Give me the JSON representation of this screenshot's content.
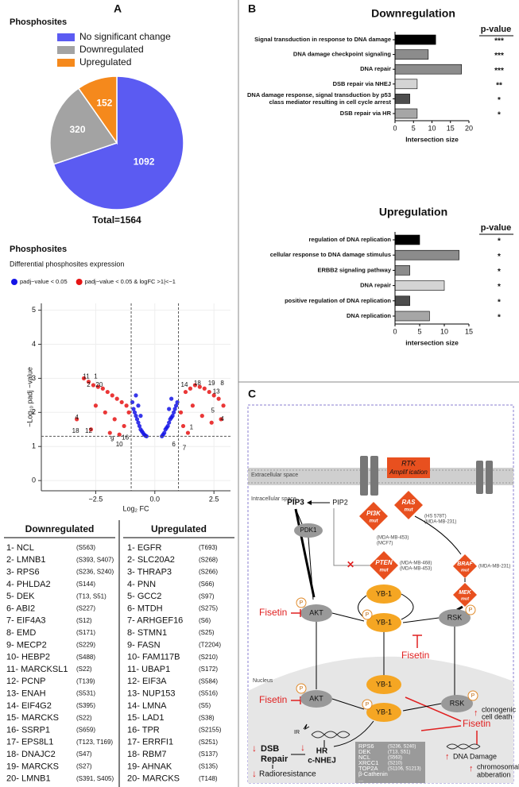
{
  "panel_labels": [
    "A",
    "B",
    "C"
  ],
  "chart_data": [
    {
      "type": "pie",
      "title": "Phosphosites",
      "categories": [
        "No significant change",
        "Downregulated",
        "Upregulated"
      ],
      "values": [
        1092,
        320,
        152
      ],
      "colors": [
        "#5b5bf2",
        "#a3a3a3",
        "#f5891c"
      ],
      "total_label": "Total=1564"
    },
    {
      "type": "scatter",
      "title": "Phosphosites",
      "subtitle": "Differential phosphosites expression",
      "x_label": "Log₂ FC",
      "y_label": "−Log₁₀ padj −value",
      "xlim": [
        -4.8,
        3.2
      ],
      "ylim": [
        -0.3,
        5.2
      ],
      "xticks": [
        {
          "value": -2.5,
          "label": "−2.5"
        },
        {
          "value": 0,
          "label": "0.0"
        },
        {
          "value": 2.5,
          "label": "2.5"
        }
      ],
      "yticks": [
        0,
        1,
        2,
        3,
        4,
        5
      ],
      "grid": true,
      "vlines": [
        -1,
        1
      ],
      "hline": 1.3,
      "series": [
        {
          "name": "padj−value < 0.05",
          "color": "#1414e6",
          "x": [
            -0.95,
            -0.9,
            -0.85,
            -0.8,
            -0.75,
            -0.7,
            -0.65,
            -0.6,
            -0.55,
            -0.5,
            -0.45,
            -0.4,
            -0.35,
            0.3,
            0.35,
            0.4,
            0.45,
            0.5,
            0.55,
            0.6,
            0.65,
            0.7,
            0.75,
            0.8,
            0.85,
            0.9,
            0.95,
            -0.7,
            -0.6,
            -0.8,
            0.6,
            0.7
          ],
          "y": [
            2.3,
            2.1,
            2.0,
            1.9,
            1.8,
            1.7,
            1.6,
            1.5,
            1.45,
            1.4,
            1.35,
            1.32,
            1.3,
            1.3,
            1.35,
            1.4,
            1.5,
            1.55,
            1.6,
            1.7,
            1.8,
            1.85,
            1.9,
            2.0,
            2.1,
            2.2,
            2.3,
            2.2,
            1.9,
            2.5,
            2.1,
            2.4
          ]
        },
        {
          "name": "padj−value < 0.05 & logFC >1|<−1",
          "color": "#e61414",
          "x": [
            -3.0,
            -2.8,
            -2.6,
            -2.4,
            -2.2,
            -2.0,
            -1.8,
            -1.6,
            -1.4,
            -1.2,
            -1.1,
            -2.5,
            -2.1,
            -1.7,
            -1.3,
            -3.3,
            -2.7,
            -1.9,
            -1.5,
            1.1,
            1.3,
            1.5,
            1.7,
            1.9,
            2.1,
            2.3,
            2.5,
            2.7,
            2.9,
            1.2,
            1.6,
            2.0,
            2.4,
            2.8,
            1.4
          ],
          "y": [
            3.0,
            2.9,
            2.8,
            2.75,
            2.7,
            2.6,
            2.5,
            2.4,
            2.3,
            2.2,
            2.0,
            2.2,
            2.0,
            1.8,
            1.6,
            1.8,
            1.5,
            1.4,
            1.35,
            2.0,
            2.6,
            2.7,
            2.8,
            2.75,
            2.7,
            2.6,
            2.5,
            2.4,
            2.2,
            1.6,
            2.2,
            1.9,
            1.7,
            1.8,
            1.4
          ]
        }
      ],
      "annotations": [
        "11",
        "1",
        "2",
        "20",
        "4",
        "18",
        "12",
        "9",
        "10",
        "16",
        "14",
        "18",
        "19",
        "8",
        "13",
        "5",
        "4",
        "6",
        "7",
        "1"
      ]
    },
    {
      "type": "bar",
      "orientation": "horizontal",
      "title": "Downregulation",
      "x_label": "Intersection size",
      "categories": [
        "Signal transduction in response to DNA damage",
        "DNA damage checkpoint signaling",
        "DNA repair",
        "DSB repair via NHEJ",
        "DNA damage response, signal transduction by p53 class mediator resulting in cell cycle arrest",
        "DSB repair via HR"
      ],
      "values": [
        11,
        9,
        18,
        6,
        4,
        6
      ],
      "colors": [
        "#000000",
        "#8c8c8c",
        "#8c8c8c",
        "#d4d4d4",
        "#4d4d4d",
        "#a6a6a6"
      ],
      "p_header": "p-value",
      "p_values": [
        "***",
        "***",
        "***",
        "**",
        "*",
        "*"
      ],
      "xlim": [
        0,
        20
      ],
      "xticks": [
        0,
        5,
        10,
        15,
        20
      ]
    },
    {
      "type": "bar",
      "orientation": "horizontal",
      "title": "Upregulation",
      "x_label": "intersection size",
      "categories": [
        "regulation of DNA replication",
        "cellular response to DNA damage stimulus",
        "ERBB2 signaling pathway",
        "DNA repair",
        "positive regulation of DNA replication",
        "DNA replication"
      ],
      "values": [
        5,
        13,
        3,
        10,
        3,
        7
      ],
      "colors": [
        "#000000",
        "#8c8c8c",
        "#8c8c8c",
        "#d4d4d4",
        "#4d4d4d",
        "#a6a6a6"
      ],
      "p_header": "p-value",
      "p_values": [
        "*",
        "*",
        "*",
        "*",
        "*",
        "*"
      ],
      "xlim": [
        0,
        15
      ],
      "xticks": [
        0,
        5,
        10,
        15
      ]
    }
  ],
  "table": {
    "columns": [
      {
        "header": "Downregulated",
        "rows": [
          [
            "1- NCL",
            "(S563)"
          ],
          [
            "2- LMNB1",
            "(S393, S407)"
          ],
          [
            "3- RPS6",
            "(S236, S240)"
          ],
          [
            "4- PHLDA2",
            "(S144)"
          ],
          [
            "5- DEK",
            "(T13, S51)"
          ],
          [
            "6- ABI2",
            "(S227)"
          ],
          [
            "7- EIF4A3",
            "(S12)"
          ],
          [
            "8- EMD",
            "(S171)"
          ],
          [
            "9- MECP2",
            "(S229)"
          ],
          [
            "10- HEBP2",
            "(S488)"
          ],
          [
            "11- MARCKSL1",
            "(S22)"
          ],
          [
            "12- PCNP",
            "(T139)"
          ],
          [
            "13- ENAH",
            "(S531)"
          ],
          [
            "14- EIF4G2",
            "(S395)"
          ],
          [
            "15- MARCKS",
            "(S22)"
          ],
          [
            "16- SSRP1",
            "(S659)"
          ],
          [
            "17- EPS8L1",
            "(T123, T169)"
          ],
          [
            "18- DNAJC2",
            "(S47)"
          ],
          [
            "19- MARCKS",
            "(S27)"
          ],
          [
            "20- LMNB1",
            "(S391, S405)"
          ]
        ]
      },
      {
        "header": "Upregulated",
        "rows": [
          [
            "1- EGFR",
            "(T693)"
          ],
          [
            "2- SLC20A2",
            "(S268)"
          ],
          [
            "3- THRAP3",
            "(S266)"
          ],
          [
            "4- PNN",
            "(S66)"
          ],
          [
            "5- GCC2",
            "(S97)"
          ],
          [
            "6- MTDH",
            "(S275)"
          ],
          [
            "7- ARHGEF16",
            "(S6)"
          ],
          [
            "8- STMN1",
            "(S25)"
          ],
          [
            "9- FASN",
            "(T2204)"
          ],
          [
            "10- FAM117B",
            "(S210)"
          ],
          [
            "11- UBAP1",
            "(S172)"
          ],
          [
            "12- EIF3A",
            "(S584)"
          ],
          [
            "13- NUP153",
            "(S516)"
          ],
          [
            "14- LMNA",
            "(S5)"
          ],
          [
            "15- LAD1",
            "(S38)"
          ],
          [
            "16- TPR",
            "(S2155)"
          ],
          [
            "17- ERRFI1",
            "(S251)"
          ],
          [
            "18- RBM7",
            "(S137)"
          ],
          [
            "19- AHNAK",
            "(S135)"
          ],
          [
            "20- MARCKS",
            "(T148)"
          ]
        ]
      }
    ]
  },
  "diagram": {
    "extracellular": "Extracellular space",
    "intracellular": "Intracellular space",
    "nucleus": "Nucleus",
    "rtk": "RTK",
    "amplification": "Amplif ication",
    "pip3": "PIP3",
    "pip2": "PIP2",
    "pdk1": "PDK1",
    "pi3k": "PI3K",
    "ras": "RAS",
    "pten": "PTEN",
    "braf": "BRAF",
    "mek": "MEK",
    "mut": "mut",
    "pi3k_lines": [
      "(MDA-MB-453)",
      "(MCF7)"
    ],
    "ras_lines": [
      "(HS 578T)",
      "(MDA-MB-231)"
    ],
    "pten_lines": [
      "(MDA-MB-468)",
      "(MDA-MB-453)"
    ],
    "braf_line": "(MDA-MB-231)",
    "p": "P",
    "akt": "AKT",
    "yb1": "YB-1",
    "rsk": "RSK",
    "fisetin": "Fisetin",
    "ir": "IR",
    "hr": "HR",
    "nhej": "c-NHEJ",
    "dsb": "DSB",
    "repair": "Repair",
    "radioresistance": "Radioresistance",
    "genes": [
      [
        "RPS6",
        "(S236, S240)"
      ],
      [
        "DEK",
        "(T13, S51)"
      ],
      [
        "NCL",
        "(S563)"
      ],
      [
        "XRCC1",
        "(S210)"
      ],
      [
        "TOP2A",
        "(S1106, S1213)"
      ],
      [
        "β-Cathenin",
        ""
      ],
      [
        "...",
        ""
      ]
    ],
    "clonogenic": [
      "clonogenic",
      "cell death"
    ],
    "dna_damage": "DNA Damage",
    "chromosomal": [
      "chromosomal",
      "abberation"
    ]
  }
}
